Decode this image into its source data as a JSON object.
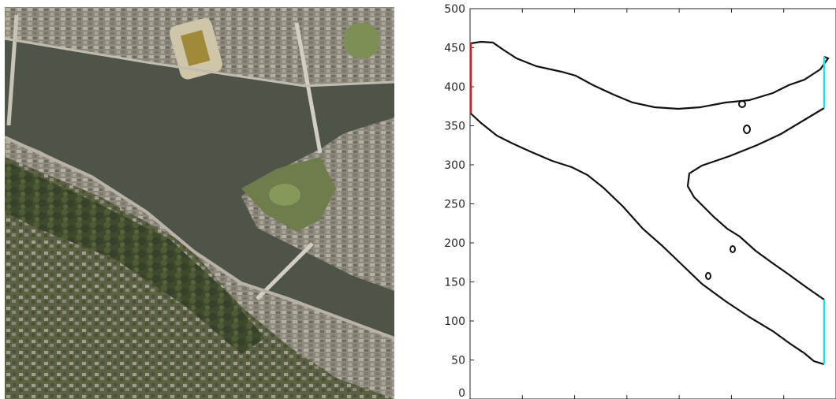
{
  "left_panel": {
    "content": "aerial-satellite-photo"
  },
  "right_panel": {
    "chart_data": {
      "type": "line",
      "title": "",
      "xlabel": "",
      "ylabel": "",
      "ylim": [
        0,
        500
      ],
      "yticks": [
        0,
        50,
        100,
        150,
        200,
        250,
        300,
        350,
        400,
        450,
        500
      ],
      "xticks_labels_visible": false,
      "grid": false,
      "colors": {
        "boundary": "#111111",
        "inlet": "#cc1f1f",
        "outlet": "#19e3f0"
      }
    }
  }
}
